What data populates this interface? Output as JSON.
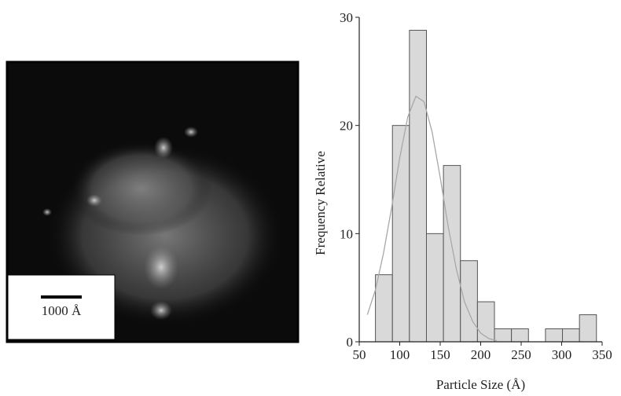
{
  "image": {
    "scale_label": "1000 Å"
  },
  "chart_data": {
    "type": "histogram",
    "xlabel": "Particle Size (Å)",
    "ylabel": "Frequency Relative",
    "bins": [
      70,
      91,
      112,
      133,
      154,
      175,
      196,
      217,
      238,
      259,
      280,
      301,
      322,
      343
    ],
    "values": [
      6.2,
      20,
      28.8,
      10,
      16.3,
      7.5,
      3.7,
      1.2,
      1.2,
      0,
      1.2,
      1.2,
      2.5
    ],
    "color": "#d9d9d9",
    "edgecolor": "#555555",
    "fit": {
      "x": [
        60,
        70,
        80,
        90,
        100,
        110,
        120,
        130,
        140,
        150,
        160,
        170,
        180,
        190,
        200,
        210,
        220
      ],
      "values": [
        2.5,
        4.8,
        8.2,
        12.4,
        17.0,
        20.8,
        22.7,
        22.2,
        19.4,
        15.2,
        10.6,
        6.7,
        3.7,
        1.9,
        0.8,
        0.3,
        0.1
      ],
      "color": "#a8a8a8"
    },
    "xlim": [
      50,
      350
    ],
    "xticks": [
      50,
      100,
      150,
      200,
      250,
      300,
      350
    ],
    "ylim": [
      0,
      30
    ],
    "yticks": [
      0,
      10,
      20,
      30
    ]
  }
}
